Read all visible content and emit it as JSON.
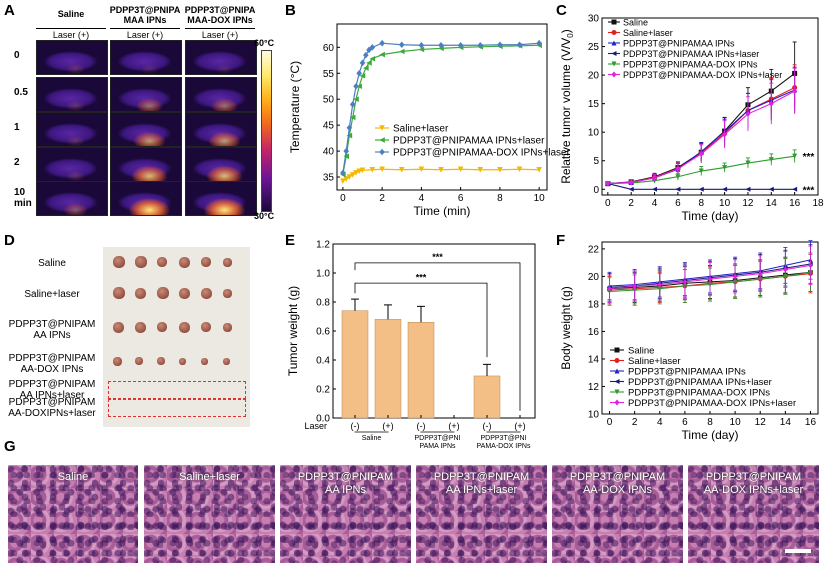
{
  "panel_labels": {
    "A": "A",
    "B": "B",
    "C": "C",
    "D": "D",
    "E": "E",
    "F": "F",
    "G": "G"
  },
  "panelA": {
    "columns": [
      "Saline",
      "PDPP3T@PNIPA\nMAA IPNs",
      "PDPP3T@PNIPA\nMAA-DOX IPNs"
    ],
    "laser": [
      "Laser (+)",
      "Laser (+)",
      "Laser (+)"
    ],
    "rows": [
      "0",
      "0.5",
      "1",
      "2",
      "10\nmin"
    ],
    "colorbar_max": "60°C",
    "colorbar_min": "30°C",
    "colors": {
      "bg": "#1a0838",
      "body": "#4b1b8c",
      "hot": "#ffd44a"
    }
  },
  "panelD": {
    "rows": [
      "Saline",
      "Saline+laser",
      "PDPP3T@PNIPAM\nAA IPNs",
      "PDPP3T@PNIPAM\nAA-DOX IPNs",
      "PDPP3T@PNIPAM\nAA IPNs+laser",
      "PDPP3T@PNIPAM\nAA-DOXIPNs+laser"
    ],
    "colors": {
      "bg": "#ece8e2",
      "tumor": "#9c5a4a",
      "dash": "#e03030"
    }
  },
  "panelG": {
    "labels": [
      "Saline",
      "Saline+laser",
      "PDPP3T@PNIPAM\nAA IPNs",
      "PDPP3T@PNIPAM\nAA IPNs+laser",
      "PDPP3T@PNIPAM\nAA-DOX IPNs",
      "PDPP3T@PNIPAM\nAA-DOX IPNs+laser"
    ]
  },
  "chart_data": [
    {
      "id": "B",
      "type": "line",
      "xlabel": "Time (min)",
      "ylabel": "Temperature (°C)",
      "xlim": [
        -0.3,
        10.4
      ],
      "ylim": [
        32.5,
        64.5
      ],
      "xticks": [
        0,
        2,
        4,
        6,
        8,
        10
      ],
      "yticks": [
        35,
        40,
        45,
        50,
        55,
        60
      ],
      "series": [
        {
          "name": "Saline+laser",
          "color": "#f5b800",
          "marker": "tri_down",
          "x": [
            0,
            0.17,
            0.33,
            0.5,
            0.67,
            0.83,
            1,
            1.5,
            2,
            3,
            4,
            5,
            6,
            7,
            8,
            9,
            10
          ],
          "y": [
            34.2,
            34.6,
            35.0,
            35.4,
            35.8,
            36.1,
            36.3,
            36.4,
            36.5,
            36.4,
            36.5,
            36.4,
            36.5,
            36.4,
            36.4,
            36.5,
            36.4
          ]
        },
        {
          "name": "PDPP3T@PNIPAMAA IPNs+laser",
          "color": "#3caa3c",
          "marker": "tri_left",
          "x": [
            0,
            0.17,
            0.33,
            0.5,
            0.67,
            0.83,
            1,
            1.17,
            1.33,
            1.5,
            2,
            3,
            4,
            5,
            6,
            7,
            8,
            9,
            10
          ],
          "y": [
            35.5,
            39,
            43,
            46.5,
            50,
            52.5,
            54.5,
            56,
            57,
            57.8,
            58.6,
            59.2,
            59.6,
            59.8,
            60,
            60.1,
            60.2,
            60.3,
            60.4
          ]
        },
        {
          "name": "PDPP3T@PNIPAMAA-DOX IPNs+laser",
          "color": "#4d7fc0",
          "marker": "diamond",
          "x": [
            0,
            0.17,
            0.33,
            0.5,
            0.67,
            0.83,
            1,
            1.17,
            1.33,
            1.5,
            2,
            3,
            4,
            5,
            6,
            7,
            8,
            9,
            10
          ],
          "y": [
            35.8,
            40,
            44.5,
            49,
            52.5,
            55,
            57,
            58.5,
            59.5,
            60,
            60.8,
            60.5,
            60.4,
            60.4,
            60.4,
            60.4,
            60.5,
            60.5,
            60.8
          ]
        }
      ]
    },
    {
      "id": "C",
      "type": "line",
      "xlabel": "Time (day)",
      "ylabel": "Relative tumor volume (V/V0)",
      "ylabel_main": "Relative tumor volume (V/V",
      "ylabel_sub": "0",
      "ylabel_end": ")",
      "xlim": [
        -0.5,
        18
      ],
      "ylim": [
        -1,
        30
      ],
      "xticks": [
        0,
        2,
        4,
        6,
        8,
        10,
        12,
        14,
        16,
        18
      ],
      "yticks": [
        0,
        5,
        10,
        15,
        20,
        25,
        30
      ],
      "x": [
        0,
        2,
        4,
        6,
        8,
        10,
        12,
        14,
        16
      ],
      "annotations": [
        "***",
        "***"
      ],
      "series": [
        {
          "name": "Saline",
          "color": "#111111",
          "marker": "square",
          "y": [
            1,
            1.3,
            2.2,
            3.8,
            6.5,
            10.2,
            14.8,
            17.2,
            20.3
          ],
          "err": [
            0,
            0.2,
            0.6,
            1,
            1.6,
            2.4,
            3,
            3.8,
            5.5
          ]
        },
        {
          "name": "Saline+laser",
          "color": "#e0201c",
          "marker": "circle",
          "y": [
            1,
            1.2,
            2.1,
            3.6,
            6.4,
            9.8,
            13.8,
            15.8,
            17.8
          ],
          "err": [
            0,
            0.2,
            0.6,
            1,
            1.6,
            2.4,
            3,
            3.6,
            4
          ]
        },
        {
          "name": "PDPP3T@PNIPAMAA IPNs",
          "color": "#2020c8",
          "marker": "triangle",
          "y": [
            1,
            1.2,
            2.0,
            3.5,
            6.6,
            10.1,
            13.8,
            15.6,
            17.4
          ],
          "err": [
            0,
            0.2,
            0.6,
            1,
            1.6,
            2.4,
            3,
            3.6,
            4
          ]
        },
        {
          "name": "PDPP3T@PNIPAMAA IPNs+laser",
          "color": "#1a1a7a",
          "marker": "tri_left",
          "y": [
            1,
            0,
            0,
            0,
            0,
            0,
            0,
            0,
            0
          ],
          "err": [
            0,
            0,
            0,
            0,
            0,
            0,
            0,
            0,
            0
          ]
        },
        {
          "name": "PDPP3T@PNIPAMAA-DOX IPNs",
          "color": "#2f9a2f",
          "marker": "tri_down",
          "y": [
            1,
            1.1,
            1.5,
            2.2,
            3.2,
            3.8,
            4.6,
            5.2,
            5.8
          ],
          "err": [
            0,
            0.2,
            0.4,
            0.6,
            0.8,
            0.8,
            0.9,
            1,
            1.1
          ]
        },
        {
          "name": "PDPP3T@PNIPAMAA-DOX IPNs+laser",
          "color": "#e020e0",
          "marker": "diamond",
          "y": [
            1,
            1.2,
            2.0,
            3.6,
            6.2,
            9.6,
            13.2,
            15.0,
            17.2
          ],
          "err": [
            0,
            0.2,
            0.6,
            1,
            1.6,
            2.4,
            3,
            3.6,
            4
          ]
        }
      ]
    },
    {
      "id": "E",
      "type": "bar",
      "ylabel": "Tumor weight (g)",
      "ylim": [
        0,
        1.2
      ],
      "yticks": [
        0.0,
        0.2,
        0.4,
        0.6,
        0.8,
        1.0,
        1.2
      ],
      "laser_label": "Laser",
      "bar_labels": [
        "(-)",
        "(+)",
        "(-)",
        "(+)",
        "(-)",
        "(+)"
      ],
      "values": [
        0.74,
        0.68,
        0.66,
        0,
        0.29,
        0
      ],
      "errors": [
        0.08,
        0.1,
        0.11,
        0,
        0.08,
        0
      ],
      "groups": [
        "Saline",
        "PDPP3T@PNI\nPAMA IPNs",
        "PDPP3T@PNI\nPAMA-DOX IPNs"
      ],
      "significance": [
        "***",
        "***"
      ],
      "color": "#f4bf87"
    },
    {
      "id": "F",
      "type": "line",
      "xlabel": "Time (day)",
      "ylabel": "Body weight (g)",
      "xlim": [
        -0.6,
        16.6
      ],
      "ylim": [
        10,
        22.5
      ],
      "xticks": [
        0,
        2,
        4,
        6,
        8,
        10,
        12,
        14,
        16
      ],
      "yticks": [
        10,
        12,
        14,
        16,
        18,
        20,
        22
      ],
      "x": [
        0,
        2,
        4,
        6,
        8,
        10,
        12,
        14,
        16
      ],
      "series": [
        {
          "name": "Saline",
          "color": "#111111",
          "marker": "square",
          "y": [
            19.1,
            19.2,
            19.3,
            19.5,
            19.6,
            19.7,
            19.9,
            20.1,
            20.3
          ],
          "err": [
            1,
            1.1,
            1.1,
            1.2,
            1.2,
            1.2,
            1.3,
            1.3,
            1.4
          ]
        },
        {
          "name": "Saline+laser",
          "color": "#e0201c",
          "marker": "circle",
          "y": [
            19.0,
            19.1,
            19.2,
            19.3,
            19.5,
            19.6,
            19.8,
            20.0,
            20.2
          ],
          "err": [
            1,
            1.1,
            1.1,
            1.2,
            1.2,
            1.2,
            1.3,
            1.3,
            1.4
          ]
        },
        {
          "name": "PDPP3T@PNIPAMAA IPNs",
          "color": "#2020c8",
          "marker": "triangle",
          "y": [
            19.3,
            19.4,
            19.6,
            19.8,
            20.0,
            20.2,
            20.4,
            20.8,
            21.2
          ],
          "err": [
            1,
            1.1,
            1.1,
            1.2,
            1.2,
            1.2,
            1.3,
            1.3,
            1.4
          ]
        },
        {
          "name": "PDPP3T@PNIPAMAA IPNs+laser",
          "color": "#1a1a7a",
          "marker": "tri_left",
          "y": [
            19.2,
            19.3,
            19.5,
            19.7,
            19.9,
            20.1,
            20.3,
            20.6,
            20.9
          ],
          "err": [
            1,
            1.1,
            1.1,
            1.2,
            1.2,
            1.2,
            1.3,
            1.3,
            1.4
          ]
        },
        {
          "name": "PDPP3T@PNIPAMAA-DOX IPNs",
          "color": "#2f9a2f",
          "marker": "tri_down",
          "y": [
            18.9,
            19.0,
            19.1,
            19.3,
            19.4,
            19.6,
            19.8,
            20.0,
            20.3
          ],
          "err": [
            1,
            1.1,
            1.1,
            1.2,
            1.2,
            1.2,
            1.3,
            1.3,
            1.4
          ]
        },
        {
          "name": "PDPP3T@PNIPAMAA-DOX IPNs+laser",
          "color": "#e020e0",
          "marker": "diamond",
          "y": [
            19.1,
            19.3,
            19.4,
            19.6,
            19.8,
            20.0,
            20.2,
            20.5,
            20.8
          ],
          "err": [
            1,
            1.1,
            1.1,
            1.2,
            1.2,
            1.2,
            1.3,
            1.3,
            1.4
          ]
        }
      ]
    }
  ]
}
